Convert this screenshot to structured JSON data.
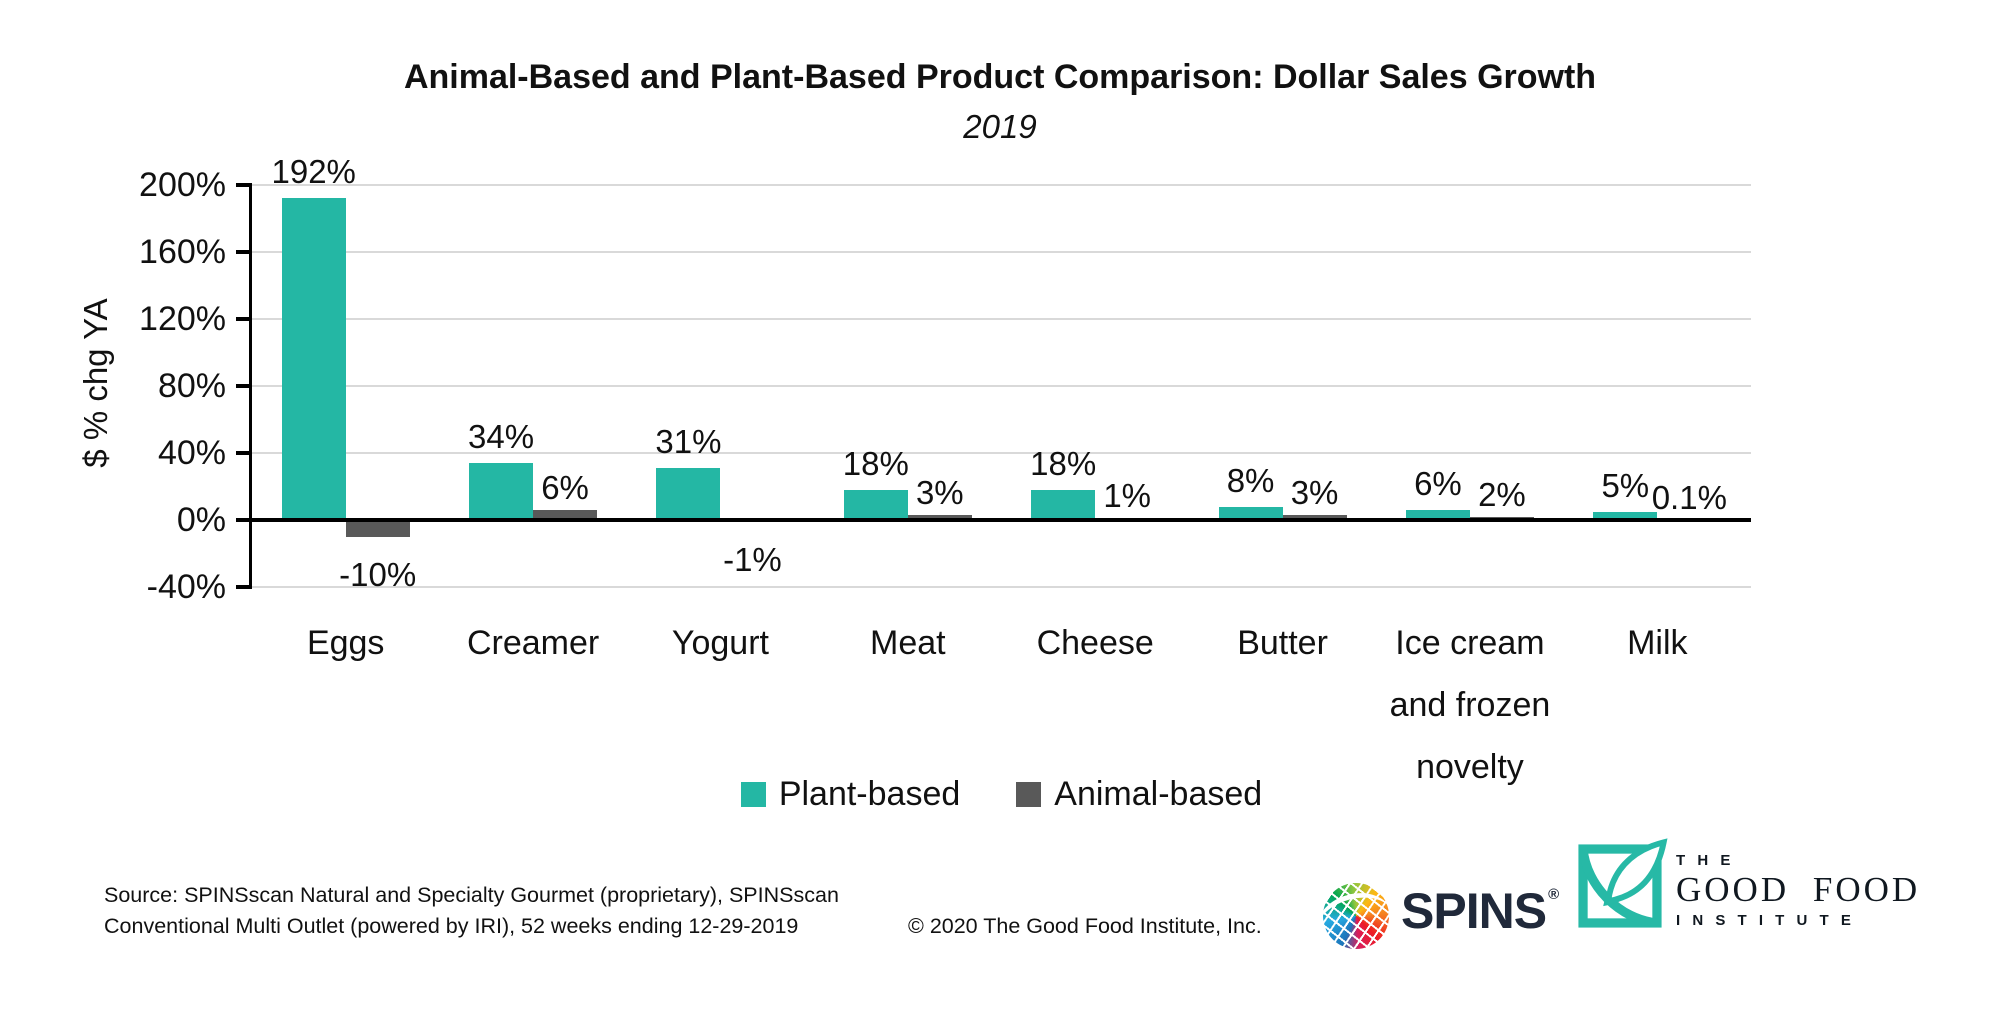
{
  "title": "Animal-Based and Plant-Based Product Comparison: Dollar Sales Growth",
  "subtitle": "2019",
  "chart_data": {
    "type": "bar",
    "categories": [
      "Eggs",
      "Creamer",
      "Yogurt",
      "Meat",
      "Cheese",
      "Butter",
      "Ice cream\nand frozen\nnovelty",
      "Milk"
    ],
    "series": [
      {
        "name": "Plant-based",
        "color": "#24b7a4",
        "values": [
          192,
          34,
          31,
          18,
          18,
          8,
          6,
          5
        ],
        "labels": [
          "192%",
          "34%",
          "31%",
          "18%",
          "18%",
          "8%",
          "6%",
          "5%"
        ]
      },
      {
        "name": "Animal-based",
        "color": "#595959",
        "values": [
          -10,
          6,
          -1,
          3,
          1,
          3,
          2,
          0.1
        ],
        "labels": [
          "-10%",
          "6%",
          "-1%",
          "3%",
          "1%",
          "3%",
          "2%",
          "0.1%"
        ]
      }
    ],
    "ylabel": "$ % chg YA",
    "xlabel": "",
    "ylim": [
      -40,
      200
    ],
    "yticks": [
      "200%",
      "160%",
      "120%",
      "80%",
      "40%",
      "0%",
      "-40%"
    ],
    "tick_values": [
      200,
      160,
      120,
      80,
      40,
      0,
      -40
    ],
    "grid": true,
    "legend_position": "bottom"
  },
  "footer": {
    "source_line1": "Source: SPINSscan Natural and Specialty Gourmet (proprietary), SPINSscan",
    "source_line2": "Conventional Multi Outlet (powered by IRI), 52 weeks ending 12-29-2019",
    "copyright": "© 2020 The Good Food Institute, Inc.",
    "spins": {
      "wordmark": "SPINS",
      "reg_mark": "®"
    },
    "gfi": {
      "line1": "T H E",
      "line2": "GOOD FOOD",
      "line3": "I N S T I T U T E"
    }
  },
  "colors": {
    "plant": "#24b7a4",
    "animal": "#595959",
    "gridline": "#d9d9d9",
    "axis": "#000000",
    "spins_navy": "#20293a",
    "gfi_teal": "#27b9a6"
  }
}
